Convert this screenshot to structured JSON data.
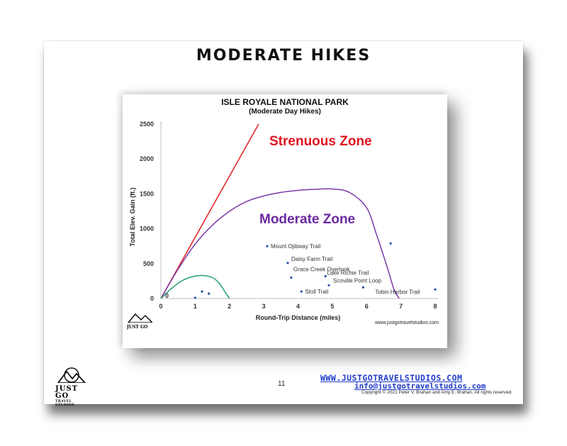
{
  "slide": {
    "title": "MODERATE HIKES",
    "page_number": "11",
    "website": "WWW.JUSTGOTRAVELSTUDIOS.COM",
    "email": "info@justgotravelstudios.com",
    "copyright": "Copyright © 2021 Peter V. Brahan and Amy E. Brahan.  All rights reserved.",
    "logo_text": "JUST GO",
    "logo_subtext": "TRAVEL STUDIOS"
  },
  "chart_data": {
    "type": "scatter",
    "title": "ISLE ROYALE NATIONAL PARK",
    "subtitle": "(Moderate Day Hikes)",
    "xlabel": "Round-Trip Distance (miles)",
    "ylabel": "Total Elev. Gain (ft.)",
    "xlim": [
      0,
      8
    ],
    "ylim": [
      0,
      2500
    ],
    "xticks": [
      "0",
      "1",
      "2",
      "3",
      "4",
      "5",
      "6",
      "7",
      "8"
    ],
    "yticks": [
      "0",
      "500",
      "1000",
      "1500",
      "2000",
      "2500"
    ],
    "origin_label": "0",
    "credit": "www.justgotravelstudios.com",
    "zones": [
      {
        "label": "Strenuous Zone",
        "color": "#e0141e"
      },
      {
        "label": "Moderate Zone",
        "color": "#6a2aa0"
      }
    ],
    "boundaries": [
      {
        "name": "strenuous",
        "color": "#e02020",
        "points": [
          [
            0,
            0
          ],
          [
            2.85,
            2500
          ]
        ]
      },
      {
        "name": "moderate",
        "color": "#7a3aa8",
        "points": [
          [
            0,
            0
          ],
          [
            0.5,
            420
          ],
          [
            1,
            780
          ],
          [
            1.5,
            1050
          ],
          [
            2,
            1250
          ],
          [
            2.5,
            1390
          ],
          [
            3,
            1470
          ],
          [
            3.5,
            1520
          ],
          [
            4,
            1550
          ],
          [
            4.5,
            1565
          ],
          [
            5,
            1570
          ],
          [
            5.5,
            1520
          ],
          [
            6,
            1300
          ],
          [
            6.3,
            900
          ],
          [
            6.6,
            450
          ],
          [
            6.8,
            130
          ],
          [
            6.95,
            0
          ]
        ]
      },
      {
        "name": "easy",
        "color": "#20a070",
        "points": [
          [
            0,
            0
          ],
          [
            0.3,
            140
          ],
          [
            0.6,
            250
          ],
          [
            0.9,
            310
          ],
          [
            1.2,
            330
          ],
          [
            1.5,
            300
          ],
          [
            1.7,
            220
          ],
          [
            1.85,
            110
          ],
          [
            2,
            0
          ]
        ]
      }
    ],
    "points": [
      {
        "name": "Mount Ojibway Trail",
        "x": 3.1,
        "y": 750
      },
      {
        "name": "Daisy Farm Trail",
        "x": 3.7,
        "y": 510
      },
      {
        "name": "Grace Creek Overlook",
        "x": 3.8,
        "y": 300
      },
      {
        "name": "Lake Richie Trail",
        "x": 4.8,
        "y": 320
      },
      {
        "name": "Scoville Point Loop",
        "x": 4.9,
        "y": 190
      },
      {
        "name": "Stoll Trail",
        "x": 4.1,
        "y": 100
      },
      {
        "name": "Tobin Harbor Trail",
        "x": 5.9,
        "y": 160
      },
      {
        "name": "",
        "x": 6.7,
        "y": 790
      },
      {
        "name": "",
        "x": 8.0,
        "y": 130
      },
      {
        "name": "",
        "x": 1.2,
        "y": 100
      },
      {
        "name": "",
        "x": 1.4,
        "y": 70
      },
      {
        "name": "",
        "x": 1.0,
        "y": 10
      }
    ]
  }
}
